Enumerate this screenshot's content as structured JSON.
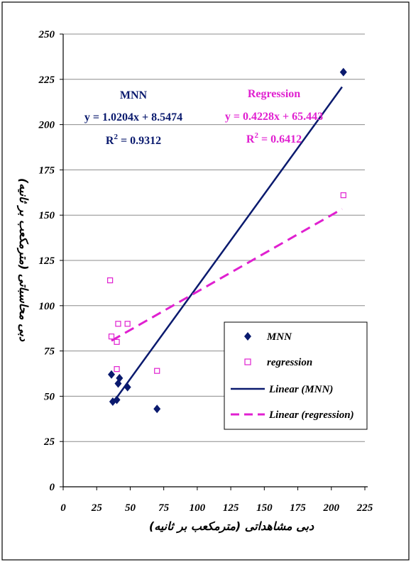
{
  "chart_data": {
    "type": "scatter",
    "xlabel": "دبی مشاهداتی (مترمکعب بر ثانیه)",
    "ylabel": "دبی محاسباتی (مترمکعب بر ثانیه)",
    "xlim": [
      0,
      225
    ],
    "ylim": [
      0,
      250
    ],
    "x_ticks": [
      "0",
      "25",
      "50",
      "75",
      "100",
      "125",
      "150",
      "175",
      "200",
      "225"
    ],
    "y_ticks": [
      "0",
      "25",
      "50",
      "75",
      "100",
      "125",
      "150",
      "175",
      "200",
      "225",
      "250"
    ],
    "grid": "horizontal",
    "legend_position": "bottom-right",
    "series": [
      {
        "name": "MNN",
        "marker": "diamond",
        "color": "#0a1a6e",
        "points": [
          {
            "x": 36,
            "y": 62
          },
          {
            "x": 37,
            "y": 47
          },
          {
            "x": 40,
            "y": 48
          },
          {
            "x": 41,
            "y": 57
          },
          {
            "x": 42,
            "y": 60
          },
          {
            "x": 48,
            "y": 55
          },
          {
            "x": 70,
            "y": 43
          },
          {
            "x": 209,
            "y": 229
          }
        ]
      },
      {
        "name": "regression",
        "marker": "open-square",
        "color": "#e020d0",
        "points": [
          {
            "x": 35,
            "y": 114
          },
          {
            "x": 36,
            "y": 83
          },
          {
            "x": 40,
            "y": 80
          },
          {
            "x": 40,
            "y": 65
          },
          {
            "x": 41,
            "y": 90
          },
          {
            "x": 48,
            "y": 90
          },
          {
            "x": 70,
            "y": 64
          },
          {
            "x": 209,
            "y": 161
          }
        ]
      }
    ],
    "trendlines": [
      {
        "name": "Linear (MNN)",
        "slope": 1.0204,
        "intercept": 8.5474,
        "x_range": [
          37,
          208
        ],
        "color": "#0a1a6e",
        "style": "solid"
      },
      {
        "name": "Linear (regression)",
        "slope": 0.4228,
        "intercept": 65.443,
        "x_range": [
          36,
          208
        ],
        "color": "#e020d0",
        "style": "dashed"
      }
    ],
    "annotations": {
      "mnn_title": "MNN",
      "mnn_equation": "y = 1.0204x + 8.5474",
      "mnn_r2_prefix": "R",
      "mnn_r2_exp": "2",
      "mnn_r2_value": " = 0.9312",
      "reg_title": "Regression",
      "reg_equation": "y = 0.4228x + 65.443",
      "reg_r2_prefix": "R",
      "reg_r2_exp": "2",
      "reg_r2_value": " = 0.6412"
    },
    "legend": [
      {
        "label": "MNN",
        "kind": "diamond",
        "color": "#0a1a6e"
      },
      {
        "label": "regression",
        "kind": "open-square",
        "color": "#e020d0"
      },
      {
        "label": "Linear (MNN)",
        "kind": "solid-line",
        "color": "#0a1a6e"
      },
      {
        "label": "Linear (regression)",
        "kind": "dashed-line",
        "color": "#e020d0"
      }
    ]
  }
}
